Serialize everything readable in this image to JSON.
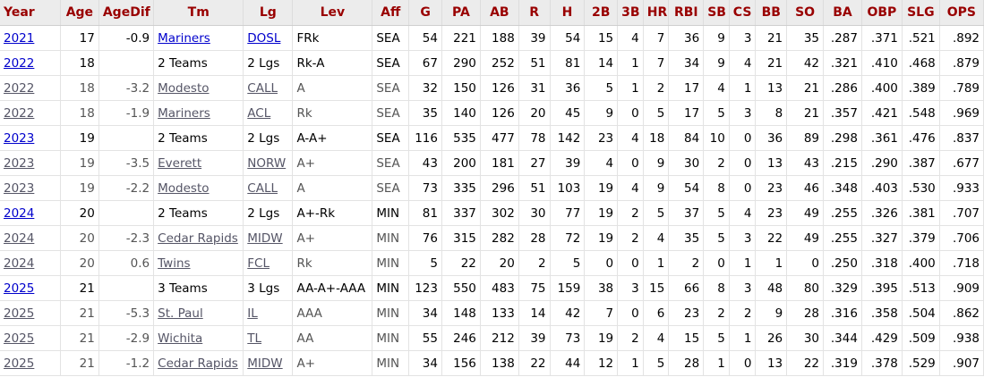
{
  "columns": [
    "Year",
    "Age",
    "AgeDif",
    "Tm",
    "Lg",
    "Lev",
    "Aff",
    "G",
    "PA",
    "AB",
    "R",
    "H",
    "2B",
    "3B",
    "HR",
    "RBI",
    "SB",
    "CS",
    "BB",
    "SO",
    "BA",
    "OBP",
    "SLG",
    "OPS"
  ],
  "rows": [
    {
      "year": "2021",
      "age": "17",
      "agedif": "-0.9",
      "tm": "Mariners",
      "tm_link": true,
      "lg": "DOSL",
      "lg_link": true,
      "lev": "FRk",
      "aff": "SEA",
      "g": "54",
      "pa": "221",
      "ab": "188",
      "r": "39",
      "h": "54",
      "b2": "15",
      "b3": "4",
      "hr": "7",
      "rbi": "36",
      "sb": "9",
      "cs": "3",
      "bb": "21",
      "so": "35",
      "ba": ".287",
      "obp": ".371",
      "slg": ".521",
      "ops": ".892",
      "total": true
    },
    {
      "year": "2022",
      "age": "18",
      "agedif": "",
      "tm": "2 Teams",
      "tm_link": false,
      "lg": "2 Lgs",
      "lg_link": false,
      "lev": "Rk-A",
      "aff": "SEA",
      "g": "67",
      "pa": "290",
      "ab": "252",
      "r": "51",
      "h": "81",
      "b2": "14",
      "b3": "1",
      "hr": "7",
      "rbi": "34",
      "sb": "9",
      "cs": "4",
      "bb": "21",
      "so": "42",
      "ba": ".321",
      "obp": ".410",
      "slg": ".468",
      "ops": ".879",
      "total": true
    },
    {
      "year": "2022",
      "age": "18",
      "agedif": "-3.2",
      "tm": "Modesto",
      "tm_link": true,
      "lg": "CALL",
      "lg_link": true,
      "lev": "A",
      "aff": "SEA",
      "g": "32",
      "pa": "150",
      "ab": "126",
      "r": "31",
      "h": "36",
      "b2": "5",
      "b3": "1",
      "hr": "2",
      "rbi": "17",
      "sb": "4",
      "cs": "1",
      "bb": "13",
      "so": "21",
      "ba": ".286",
      "obp": ".400",
      "slg": ".389",
      "ops": ".789",
      "total": false
    },
    {
      "year": "2022",
      "age": "18",
      "agedif": "-1.9",
      "tm": "Mariners",
      "tm_link": true,
      "lg": "ACL",
      "lg_link": true,
      "lev": "Rk",
      "aff": "SEA",
      "g": "35",
      "pa": "140",
      "ab": "126",
      "r": "20",
      "h": "45",
      "b2": "9",
      "b3": "0",
      "hr": "5",
      "rbi": "17",
      "sb": "5",
      "cs": "3",
      "bb": "8",
      "so": "21",
      "ba": ".357",
      "obp": ".421",
      "slg": ".548",
      "ops": ".969",
      "total": false
    },
    {
      "year": "2023",
      "age": "19",
      "agedif": "",
      "tm": "2 Teams",
      "tm_link": false,
      "lg": "2 Lgs",
      "lg_link": false,
      "lev": "A-A+",
      "aff": "SEA",
      "g": "116",
      "pa": "535",
      "ab": "477",
      "r": "78",
      "h": "142",
      "b2": "23",
      "b3": "4",
      "hr": "18",
      "rbi": "84",
      "sb": "10",
      "cs": "0",
      "bb": "36",
      "so": "89",
      "ba": ".298",
      "obp": ".361",
      "slg": ".476",
      "ops": ".837",
      "total": true
    },
    {
      "year": "2023",
      "age": "19",
      "agedif": "-3.5",
      "tm": "Everett",
      "tm_link": true,
      "lg": "NORW",
      "lg_link": true,
      "lev": "A+",
      "aff": "SEA",
      "g": "43",
      "pa": "200",
      "ab": "181",
      "r": "27",
      "h": "39",
      "b2": "4",
      "b3": "0",
      "hr": "9",
      "rbi": "30",
      "sb": "2",
      "cs": "0",
      "bb": "13",
      "so": "43",
      "ba": ".215",
      "obp": ".290",
      "slg": ".387",
      "ops": ".677",
      "total": false
    },
    {
      "year": "2023",
      "age": "19",
      "agedif": "-2.2",
      "tm": "Modesto",
      "tm_link": true,
      "lg": "CALL",
      "lg_link": true,
      "lev": "A",
      "aff": "SEA",
      "g": "73",
      "pa": "335",
      "ab": "296",
      "r": "51",
      "h": "103",
      "b2": "19",
      "b3": "4",
      "hr": "9",
      "rbi": "54",
      "sb": "8",
      "cs": "0",
      "bb": "23",
      "so": "46",
      "ba": ".348",
      "obp": ".403",
      "slg": ".530",
      "ops": ".933",
      "total": false
    },
    {
      "year": "2024",
      "age": "20",
      "agedif": "",
      "tm": "2 Teams",
      "tm_link": false,
      "lg": "2 Lgs",
      "lg_link": false,
      "lev": "A+-Rk",
      "aff": "MIN",
      "g": "81",
      "pa": "337",
      "ab": "302",
      "r": "30",
      "h": "77",
      "b2": "19",
      "b3": "2",
      "hr": "5",
      "rbi": "37",
      "sb": "5",
      "cs": "4",
      "bb": "23",
      "so": "49",
      "ba": ".255",
      "obp": ".326",
      "slg": ".381",
      "ops": ".707",
      "total": true
    },
    {
      "year": "2024",
      "age": "20",
      "agedif": "-2.3",
      "tm": "Cedar Rapids",
      "tm_link": true,
      "lg": "MIDW",
      "lg_link": true,
      "lev": "A+",
      "aff": "MIN",
      "g": "76",
      "pa": "315",
      "ab": "282",
      "r": "28",
      "h": "72",
      "b2": "19",
      "b3": "2",
      "hr": "4",
      "rbi": "35",
      "sb": "5",
      "cs": "3",
      "bb": "22",
      "so": "49",
      "ba": ".255",
      "obp": ".327",
      "slg": ".379",
      "ops": ".706",
      "total": false
    },
    {
      "year": "2024",
      "age": "20",
      "agedif": "0.6",
      "tm": "Twins",
      "tm_link": true,
      "lg": "FCL",
      "lg_link": true,
      "lev": "Rk",
      "aff": "MIN",
      "g": "5",
      "pa": "22",
      "ab": "20",
      "r": "2",
      "h": "5",
      "b2": "0",
      "b3": "0",
      "hr": "1",
      "rbi": "2",
      "sb": "0",
      "cs": "1",
      "bb": "1",
      "so": "0",
      "ba": ".250",
      "obp": ".318",
      "slg": ".400",
      "ops": ".718",
      "total": false
    },
    {
      "year": "2025",
      "age": "21",
      "agedif": "",
      "tm": "3 Teams",
      "tm_link": false,
      "lg": "3 Lgs",
      "lg_link": false,
      "lev": "AA-A+-AAA",
      "aff": "MIN",
      "g": "123",
      "pa": "550",
      "ab": "483",
      "r": "75",
      "h": "159",
      "b2": "38",
      "b3": "3",
      "hr": "15",
      "rbi": "66",
      "sb": "8",
      "cs": "3",
      "bb": "48",
      "so": "80",
      "ba": ".329",
      "obp": ".395",
      "slg": ".513",
      "ops": ".909",
      "total": true
    },
    {
      "year": "2025",
      "age": "21",
      "agedif": "-5.3",
      "tm": "St. Paul",
      "tm_link": true,
      "lg": "IL",
      "lg_link": true,
      "lev": "AAA",
      "aff": "MIN",
      "g": "34",
      "pa": "148",
      "ab": "133",
      "r": "14",
      "h": "42",
      "b2": "7",
      "b3": "0",
      "hr": "6",
      "rbi": "23",
      "sb": "2",
      "cs": "2",
      "bb": "9",
      "so": "28",
      "ba": ".316",
      "obp": ".358",
      "slg": ".504",
      "ops": ".862",
      "total": false
    },
    {
      "year": "2025",
      "age": "21",
      "agedif": "-2.9",
      "tm": "Wichita",
      "tm_link": true,
      "lg": "TL",
      "lg_link": true,
      "lev": "AA",
      "aff": "MIN",
      "g": "55",
      "pa": "246",
      "ab": "212",
      "r": "39",
      "h": "73",
      "b2": "19",
      "b3": "2",
      "hr": "4",
      "rbi": "15",
      "sb": "5",
      "cs": "1",
      "bb": "26",
      "so": "30",
      "ba": ".344",
      "obp": ".429",
      "slg": ".509",
      "ops": ".938",
      "total": false
    },
    {
      "year": "2025",
      "age": "21",
      "agedif": "-1.2",
      "tm": "Cedar Rapids",
      "tm_link": true,
      "lg": "MIDW",
      "lg_link": true,
      "lev": "A+",
      "aff": "MIN",
      "g": "34",
      "pa": "156",
      "ab": "138",
      "r": "22",
      "h": "44",
      "b2": "12",
      "b3": "1",
      "hr": "5",
      "rbi": "28",
      "sb": "1",
      "cs": "0",
      "bb": "13",
      "so": "22",
      "ba": ".319",
      "obp": ".378",
      "slg": ".529",
      "ops": ".907",
      "total": false
    }
  ],
  "colors": {
    "header_text": "#990000",
    "link": "#0000cc",
    "header_bg": "#ececec"
  }
}
